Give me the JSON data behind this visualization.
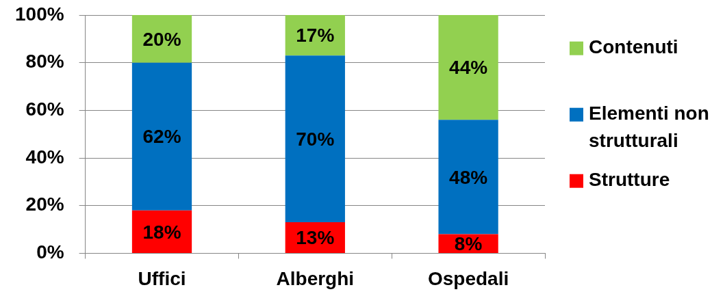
{
  "chart_data": {
    "type": "bar",
    "categories": [
      "Uffici",
      "Alberghi",
      "Ospedali"
    ],
    "stacked": true,
    "series": [
      {
        "name": "Strutture",
        "color": "#ff0000",
        "values": [
          18,
          13,
          8
        ],
        "value_labels": [
          "18%",
          "13%",
          "8%"
        ]
      },
      {
        "name": "Elementi non strutturali",
        "color": "#0070c0",
        "values": [
          62,
          70,
          48
        ],
        "value_labels": [
          "62%",
          "70%",
          "48%"
        ]
      },
      {
        "name": "Contenuti",
        "color": "#92d050",
        "values": [
          20,
          17,
          44
        ],
        "value_labels": [
          "20%",
          "17%",
          "44%"
        ]
      }
    ],
    "ylim": [
      0,
      100
    ],
    "yticks": [
      {
        "value": 0,
        "label": "0%"
      },
      {
        "value": 20,
        "label": "20%"
      },
      {
        "value": 40,
        "label": "40%"
      },
      {
        "value": 60,
        "label": "60%"
      },
      {
        "value": 80,
        "label": "80%"
      },
      {
        "value": 100,
        "label": "100%"
      }
    ],
    "grid": "y",
    "legend": "right"
  }
}
